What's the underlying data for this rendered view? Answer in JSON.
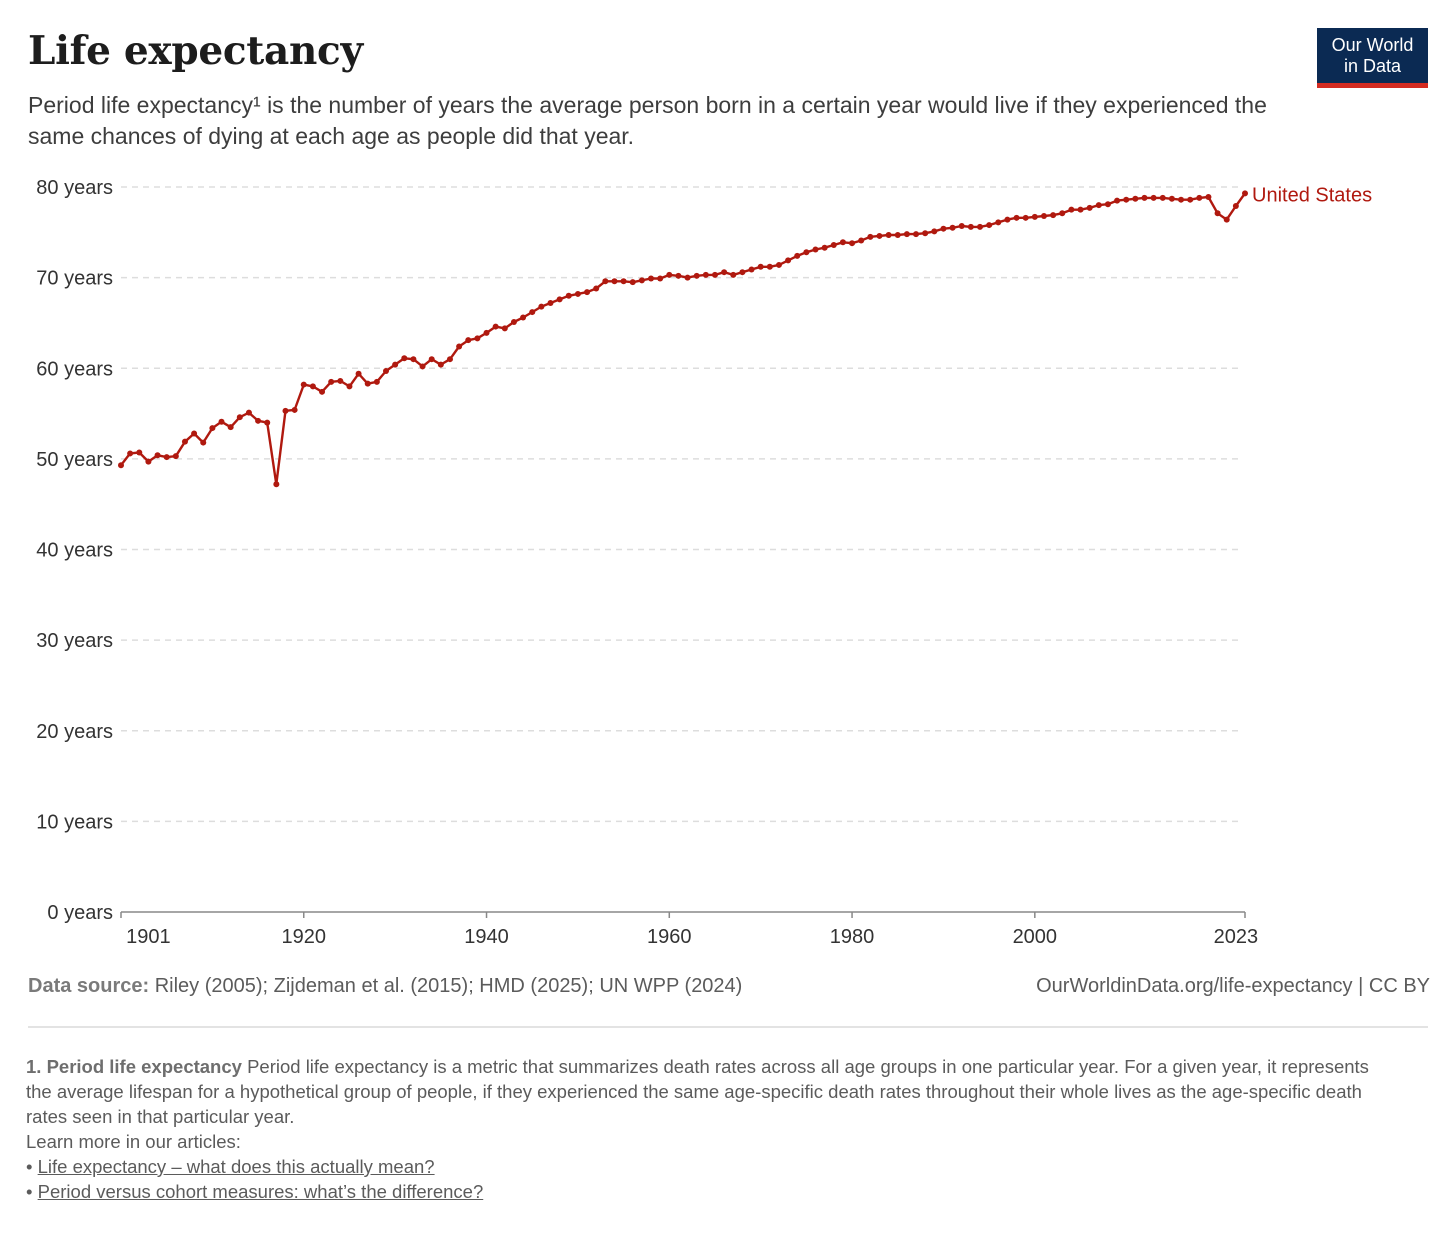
{
  "header": {
    "title": "Life expectancy",
    "subtitle": "Period life expectancy¹ is the number of years the average person born in a certain year would live if they experienced the same chances of dying at each age as people did that year.",
    "logo_line1": "Our World",
    "logo_line2": "in Data"
  },
  "colors": {
    "series": "#b0190f",
    "logo_bg": "#0b2a53",
    "logo_accent": "#d42b21",
    "grid": "#dddddd"
  },
  "chart_data": {
    "type": "line",
    "title": "Life expectancy",
    "ylim": [
      0,
      80
    ],
    "xlim": [
      1900,
      2023
    ],
    "x_ticks": [
      "1901",
      "1920",
      "1940",
      "1960",
      "1980",
      "2000",
      "2023"
    ],
    "y_ticks": [
      "0 years",
      "10 years",
      "20 years",
      "30 years",
      "40 years",
      "50 years",
      "60 years",
      "70 years",
      "80 years"
    ],
    "grid": "horizontal dashed",
    "series": [
      {
        "name": "United States",
        "x": [
          1900,
          1901,
          1902,
          1903,
          1904,
          1905,
          1906,
          1907,
          1908,
          1909,
          1910,
          1911,
          1912,
          1913,
          1914,
          1915,
          1916,
          1917,
          1918,
          1919,
          1920,
          1921,
          1922,
          1923,
          1924,
          1925,
          1926,
          1927,
          1928,
          1929,
          1930,
          1931,
          1932,
          1933,
          1934,
          1935,
          1936,
          1937,
          1938,
          1939,
          1940,
          1941,
          1942,
          1943,
          1944,
          1945,
          1946,
          1947,
          1948,
          1949,
          1950,
          1951,
          1952,
          1953,
          1954,
          1955,
          1956,
          1957,
          1958,
          1959,
          1960,
          1961,
          1962,
          1963,
          1964,
          1965,
          1966,
          1967,
          1968,
          1969,
          1970,
          1971,
          1972,
          1973,
          1974,
          1975,
          1976,
          1977,
          1978,
          1979,
          1980,
          1981,
          1982,
          1983,
          1984,
          1985,
          1986,
          1987,
          1988,
          1989,
          1990,
          1991,
          1992,
          1993,
          1994,
          1995,
          1996,
          1997,
          1998,
          1999,
          2000,
          2001,
          2002,
          2003,
          2004,
          2005,
          2006,
          2007,
          2008,
          2009,
          2010,
          2011,
          2012,
          2013,
          2014,
          2015,
          2016,
          2017,
          2018,
          2019,
          2020,
          2021,
          2022,
          2023
        ],
        "values": [
          49.3,
          50.6,
          50.7,
          49.7,
          50.4,
          50.2,
          50.3,
          51.9,
          52.8,
          51.8,
          53.4,
          54.1,
          53.5,
          54.6,
          55.1,
          54.2,
          54.0,
          47.2,
          55.3,
          55.4,
          58.2,
          58.0,
          57.4,
          58.5,
          58.6,
          58.0,
          59.4,
          58.3,
          58.5,
          59.7,
          60.4,
          61.1,
          61.0,
          60.2,
          61.0,
          60.4,
          61.0,
          62.4,
          63.1,
          63.3,
          63.9,
          64.6,
          64.4,
          65.1,
          65.6,
          66.2,
          66.8,
          67.2,
          67.6,
          68.0,
          68.2,
          68.4,
          68.8,
          69.6,
          69.6,
          69.6,
          69.5,
          69.7,
          69.9,
          69.9,
          70.3,
          70.2,
          70.0,
          70.2,
          70.3,
          70.3,
          70.6,
          70.3,
          70.6,
          70.9,
          71.2,
          71.2,
          71.4,
          71.9,
          72.4,
          72.8,
          73.1,
          73.3,
          73.6,
          73.9,
          73.8,
          74.1,
          74.5,
          74.6,
          74.7,
          74.7,
          74.8,
          74.8,
          74.9,
          75.1,
          75.4,
          75.5,
          75.7,
          75.6,
          75.6,
          75.8,
          76.1,
          76.4,
          76.6,
          76.6,
          76.7,
          76.8,
          76.9,
          77.1,
          77.5,
          77.5,
          77.7,
          78.0,
          78.1,
          78.5,
          78.6,
          78.7,
          78.8,
          78.8,
          78.8,
          78.7,
          78.6,
          78.6,
          78.8,
          78.9,
          77.1,
          76.4,
          77.9,
          79.3
        ]
      }
    ]
  },
  "footer": {
    "source_label": "Data source:",
    "source_text": " Riley (2005); Zijdeman et al. (2015); HMD (2025); UN WPP (2024)",
    "credit": "OurWorldinData.org/life-expectancy | CC BY"
  },
  "note": {
    "heading": "1. Period life expectancy",
    "body": " Period life expectancy is a metric that summarizes death rates across all age groups in one particular year. For a given year, it represents the average lifespan for a hypothetical group of people, if they experienced the same age-specific death rates throughout their whole lives as the age-specific death rates seen in that particular year.",
    "learn_more": "Learn more in our articles:",
    "links": [
      "Life expectancy – what does this actually mean?",
      "Period versus cohort measures: what’s the difference?"
    ]
  }
}
